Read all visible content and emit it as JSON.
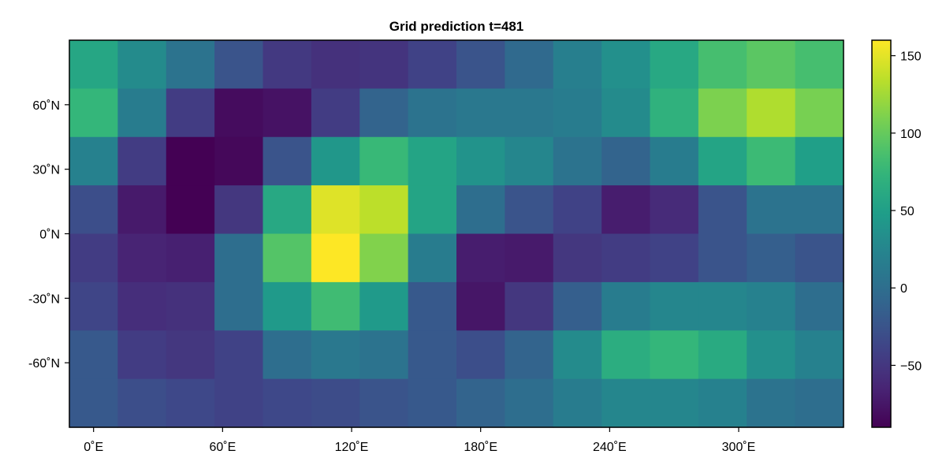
{
  "chart_data": {
    "type": "heatmap",
    "title": "Grid prediction t=481",
    "xlabel": "",
    "ylabel": "",
    "x_ticks": [
      {
        "value": 0,
        "label": "0˚E"
      },
      {
        "value": 60,
        "label": "60˚E"
      },
      {
        "value": 120,
        "label": "120˚E"
      },
      {
        "value": 180,
        "label": "180˚E"
      },
      {
        "value": 240,
        "label": "240˚E"
      },
      {
        "value": 300,
        "label": "300˚E"
      }
    ],
    "y_ticks": [
      {
        "value": 60,
        "label": "60˚N"
      },
      {
        "value": 30,
        "label": "30˚N"
      },
      {
        "value": 0,
        "label": "0˚N"
      },
      {
        "value": -30,
        "label": "-30˚N"
      },
      {
        "value": -60,
        "label": "-60˚N"
      }
    ],
    "x_centers": [
      0,
      22.5,
      45,
      67.5,
      90,
      112.5,
      135,
      157.5,
      180,
      202.5,
      225,
      247.5,
      270,
      292.5,
      315,
      337.5
    ],
    "y_centers": [
      78.75,
      56.25,
      33.75,
      11.25,
      -11.25,
      -33.75,
      -56.25,
      -78.75
    ],
    "xlim": [
      -11.25,
      348.75
    ],
    "ylim": [
      -90,
      90
    ],
    "colorbar": {
      "colormap": "viridis",
      "range": [
        -90,
        160
      ],
      "ticks": [
        {
          "value": 150,
          "label": "150"
        },
        {
          "value": 100,
          "label": "100"
        },
        {
          "value": 50,
          "label": "50"
        },
        {
          "value": 0,
          "label": "0"
        },
        {
          "value": -50,
          "label": "−50"
        }
      ]
    },
    "values": [
      [
        58,
        30,
        5,
        -25,
        -48,
        -55,
        -52,
        -40,
        -25,
        -5,
        18,
        35,
        60,
        85,
        95,
        85
      ],
      [
        75,
        15,
        -45,
        -82,
        -78,
        -45,
        -10,
        5,
        10,
        10,
        15,
        30,
        70,
        110,
        130,
        108
      ],
      [
        20,
        -45,
        -90,
        -85,
        -25,
        42,
        78,
        55,
        38,
        25,
        5,
        -10,
        15,
        55,
        80,
        50
      ],
      [
        -30,
        -72,
        -90,
        -50,
        60,
        148,
        135,
        55,
        0,
        -25,
        -40,
        -70,
        -60,
        -25,
        5,
        5
      ],
      [
        -45,
        -65,
        -68,
        0,
        92,
        160,
        112,
        15,
        -70,
        -72,
        -50,
        -45,
        -40,
        -25,
        -15,
        -25
      ],
      [
        -38,
        -57,
        -55,
        0,
        45,
        82,
        45,
        -20,
        -75,
        -50,
        -15,
        15,
        25,
        25,
        20,
        0
      ],
      [
        -20,
        -45,
        -50,
        -40,
        0,
        10,
        5,
        -20,
        -30,
        -10,
        30,
        65,
        75,
        62,
        35,
        20
      ],
      [
        -20,
        -30,
        -35,
        -40,
        -35,
        -32,
        -25,
        -20,
        -10,
        0,
        15,
        25,
        25,
        20,
        5,
        0
      ]
    ]
  }
}
